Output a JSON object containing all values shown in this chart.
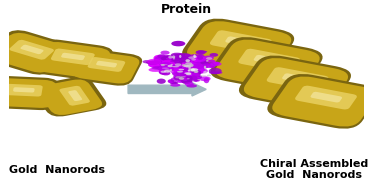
{
  "background_color": "#ffffff",
  "label_left": "Gold  Nanorods",
  "label_right": "Chiral Assembled\nGold  Nanorods",
  "label_protein": "Protein",
  "gold_dark": "#7a6510",
  "gold_mid": "#c8a518",
  "gold_light": "#e8d060",
  "gold_highlight": "#f0e090",
  "arrow_color": "#a0b8c0",
  "label_fontsize": 8,
  "protein_label_fontsize": 9,
  "left_rods": [
    [
      0.055,
      0.72,
      -30,
      0.115,
      0.048
    ],
    [
      0.175,
      0.68,
      -15,
      0.115,
      0.048
    ],
    [
      0.27,
      0.64,
      -15,
      0.1,
      0.044
    ],
    [
      0.04,
      0.5,
      -5,
      0.105,
      0.044
    ],
    [
      0.17,
      0.48,
      -70,
      0.1,
      0.044
    ]
  ],
  "right_rods": [
    [
      0.645,
      0.755,
      -20,
      0.155,
      0.062
    ],
    [
      0.725,
      0.655,
      -20,
      0.155,
      0.062
    ],
    [
      0.805,
      0.555,
      -20,
      0.155,
      0.062
    ],
    [
      0.885,
      0.455,
      -20,
      0.155,
      0.062
    ]
  ]
}
